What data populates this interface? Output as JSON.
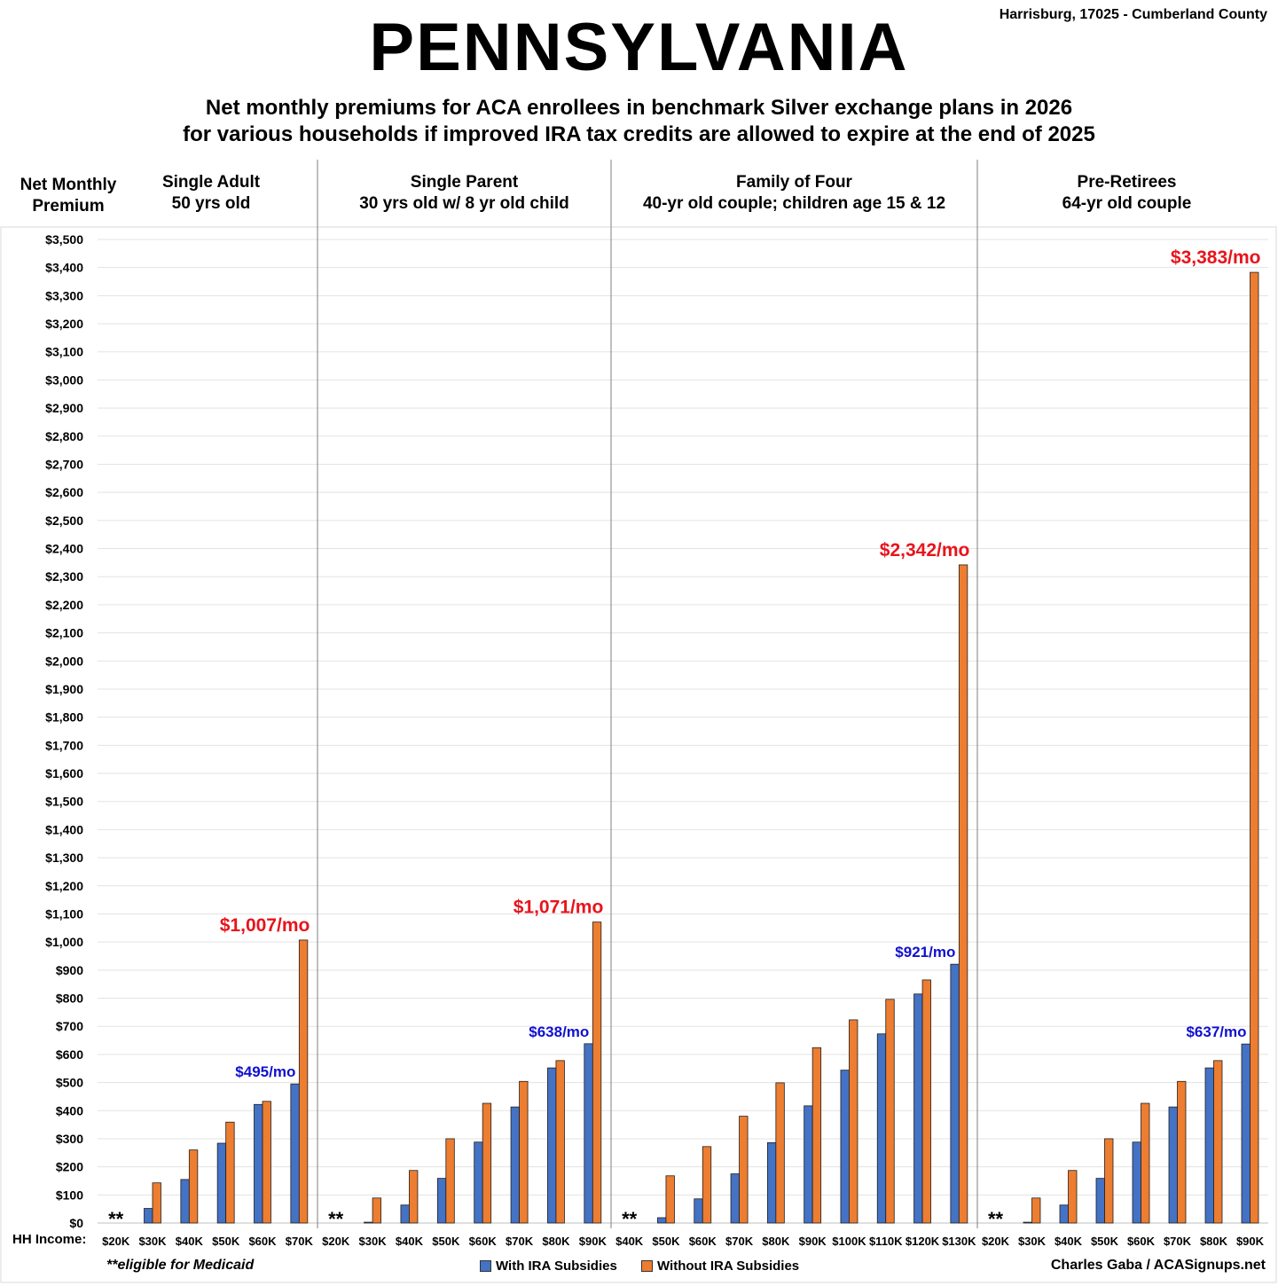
{
  "header": {
    "title": "PENNSYLVANIA",
    "location": "Harrisburg, 17025 - Cumberland County",
    "subtitle_line1": "Net monthly premiums for ACA enrollees in benchmark Silver exchange plans in 2026",
    "subtitle_line2": "for various households if improved IRA tax credits are allowed to expire at the end of 2025"
  },
  "footer": {
    "footnote": "**eligible for Medicaid",
    "credit": "Charles Gaba / ACASignups.net",
    "hh_income_label": "HH Income:"
  },
  "colors": {
    "with": "#4472C4",
    "without": "#ED7D31",
    "callout_red": "#E8141B",
    "callout_blue": "#1010D0"
  },
  "chart_data": {
    "type": "bar",
    "ylabel_line1": "Net Monthly",
    "ylabel_line2": "Premium",
    "ylim": [
      0,
      3500
    ],
    "ytick_step": 100,
    "grid": true,
    "legend_placement": "bottom",
    "series_names": [
      "With IRA Subsidies",
      "Without IRA Subsidies"
    ],
    "panels": [
      {
        "title_line1": "Single Adult",
        "title_line2": "50 yrs old",
        "categories": [
          "$20K",
          "$30K",
          "$40K",
          "$50K",
          "$60K",
          "$70K"
        ],
        "with": [
          0,
          52,
          155,
          284,
          422,
          495
        ],
        "without": [
          0,
          143,
          260,
          359,
          433,
          1007
        ],
        "medicaid_marker": "**",
        "callout_with": "$495/mo",
        "callout_without": "$1,007/mo"
      },
      {
        "title_line1": "Single Parent",
        "title_line2": "30 yrs old w/ 8 yr old child",
        "categories": [
          "$20K",
          "$30K",
          "$40K",
          "$50K",
          "$60K",
          "$70K",
          "$80K",
          "$90K"
        ],
        "with": [
          0,
          3,
          64,
          159,
          288,
          413,
          552,
          638
        ],
        "without": [
          0,
          89,
          187,
          300,
          426,
          504,
          578,
          1071
        ],
        "medicaid_marker": "**",
        "callout_with": "$638/mo",
        "callout_without": "$1,071/mo"
      },
      {
        "title_line1": "Family of Four",
        "title_line2": "40-yr old couple; children age 15 & 12",
        "categories": [
          "$40K",
          "$50K",
          "$60K",
          "$70K",
          "$80K",
          "$90K",
          "$100K",
          "$110K",
          "$120K",
          "$130K"
        ],
        "with": [
          0,
          19,
          86,
          175,
          286,
          417,
          544,
          673,
          815,
          921
        ],
        "without": [
          0,
          168,
          272,
          380,
          499,
          624,
          723,
          796,
          865,
          2342
        ],
        "medicaid_marker": "**",
        "callout_with": "$921/mo",
        "callout_without": "$2,342/mo"
      },
      {
        "title_line1": "Pre-Retirees",
        "title_line2": "64-yr old couple",
        "categories": [
          "$20K",
          "$30K",
          "$40K",
          "$50K",
          "$60K",
          "$70K",
          "$80K",
          "$90K"
        ],
        "with": [
          0,
          3,
          64,
          159,
          288,
          413,
          552,
          637
        ],
        "without": [
          0,
          89,
          187,
          300,
          426,
          504,
          578,
          3383
        ],
        "medicaid_marker": "**",
        "callout_with": "$637/mo",
        "callout_without": "$3,383/mo"
      }
    ]
  }
}
